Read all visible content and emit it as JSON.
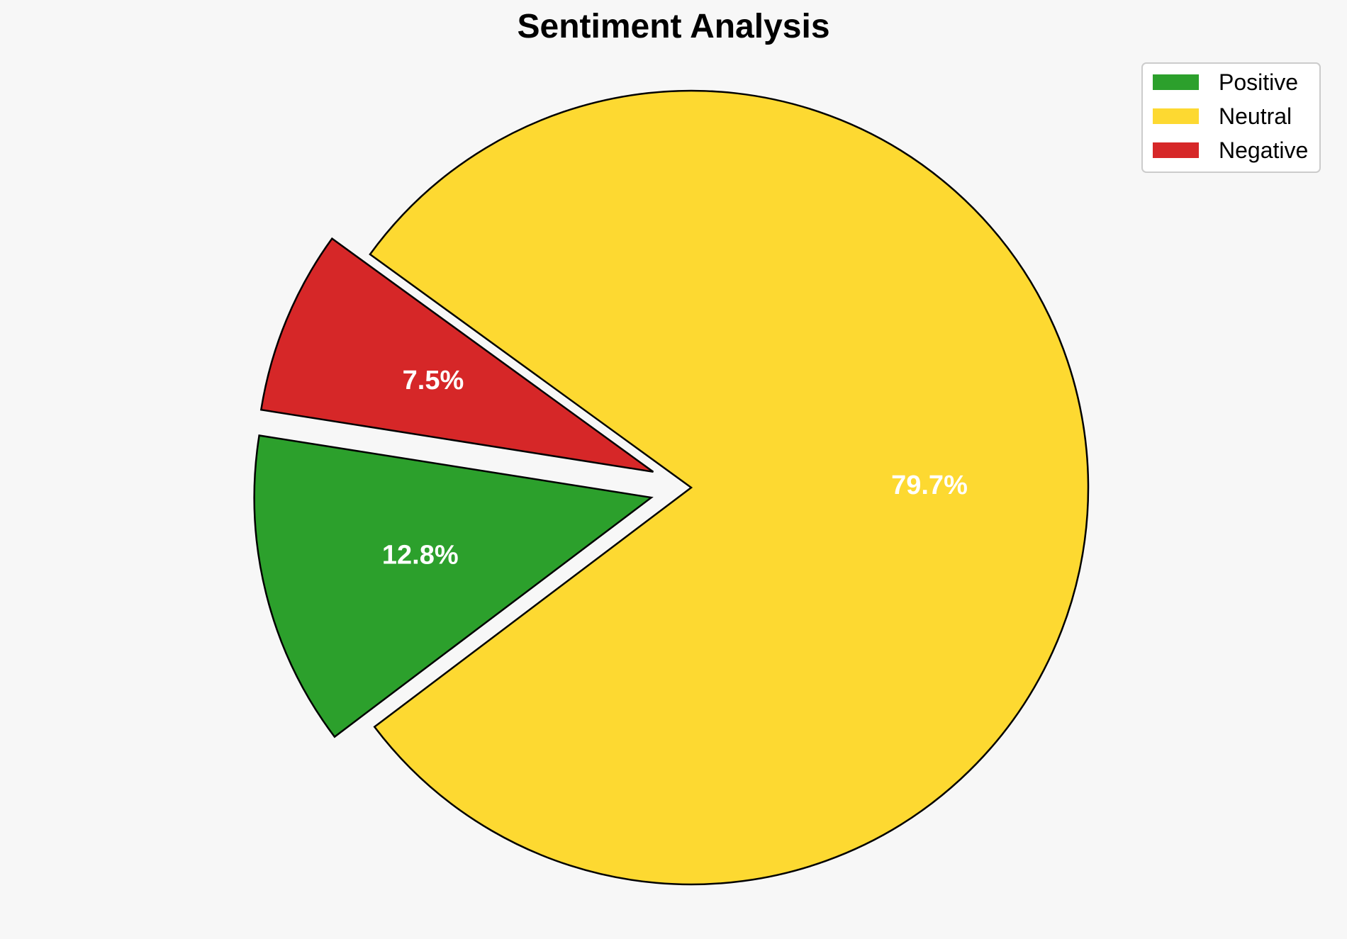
{
  "chart_data": {
    "type": "pie",
    "title": "Sentiment Analysis",
    "categories": [
      "Positive",
      "Neutral",
      "Negative"
    ],
    "values": [
      12.8,
      79.7,
      7.5
    ],
    "labels": [
      "12.8%",
      "79.7%",
      "7.5%"
    ],
    "colors": [
      "#2ca02c",
      "#fdd931",
      "#d62728"
    ],
    "exploded": [
      true,
      false,
      true
    ],
    "legend_position": "top-right",
    "edge_color": "#000000",
    "label_color": "#ffffff"
  }
}
